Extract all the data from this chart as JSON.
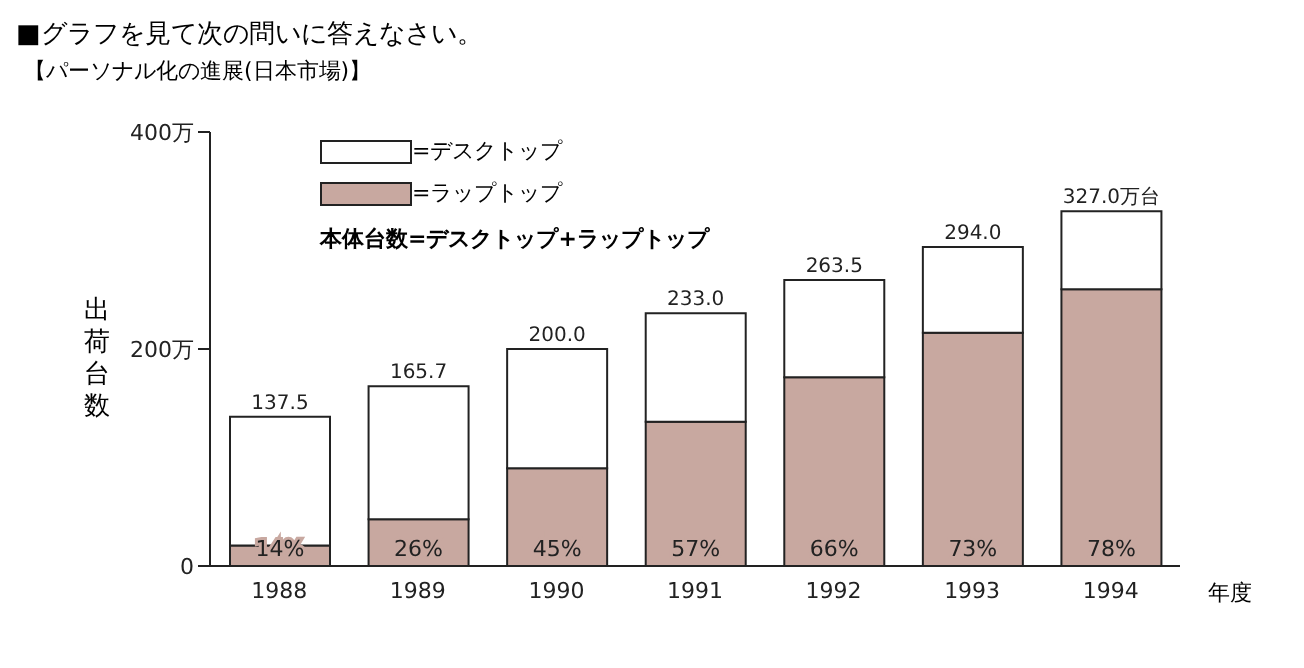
{
  "chart_data": {
    "type": "bar",
    "title": "■グラフを見て次の問いに答えなさい。",
    "subtitle": "【パーソナル化の進展(日本市場)】",
    "ylabel": "出荷台数",
    "xlabel": "年度",
    "categories": [
      "1988",
      "1989",
      "1990",
      "1991",
      "1992",
      "1993",
      "1994"
    ],
    "series": [
      {
        "name": "=ラップトップ",
        "color": "#c8a8a0",
        "values": [
          19,
          43,
          90,
          133,
          174,
          215,
          255
        ]
      },
      {
        "name": "=デスクトップ",
        "color": "#ffffff",
        "values": [
          118.5,
          122.7,
          110,
          100,
          89.5,
          79,
          72
        ]
      }
    ],
    "stacked": true,
    "totals": [
      "137.5",
      "165.7",
      "200.0",
      "233.0",
      "263.5",
      "294.0",
      "327.0万台"
    ],
    "ylim": [
      0,
      400
    ],
    "yticks": [
      0,
      {
        "value": 200,
        "label": "200万"
      },
      {
        "value": 400,
        "label": "400万"
      }
    ],
    "annotations": [
      "本体台数=デスクトップ+ラップトップ",
      "14%",
      "26%",
      "45%",
      "57%",
      "66%",
      "73%",
      "78%"
    ],
    "grid": false,
    "legend": "top left"
  }
}
